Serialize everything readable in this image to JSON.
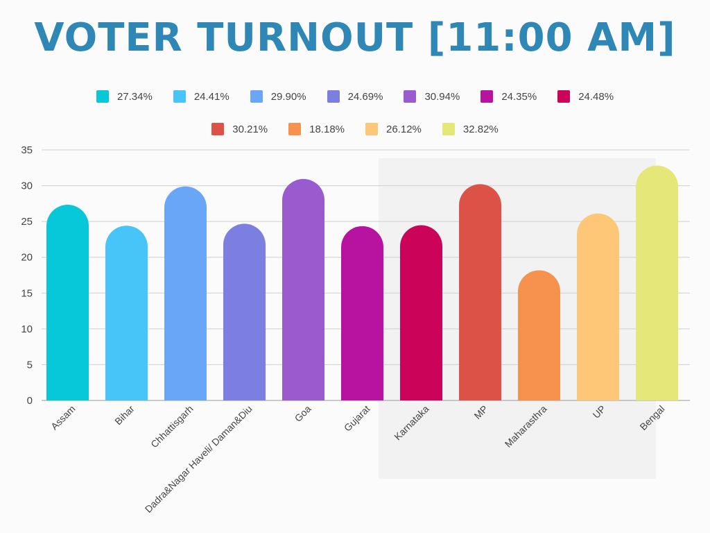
{
  "title": "VOTER TURNOUT [11:00 AM]",
  "chart_data": {
    "type": "bar",
    "title": "VOTER TURNOUT [11:00 AM]",
    "categories": [
      "Assam",
      "Bihar",
      "Chhattisgarh",
      "Dadra&Nagar Haveli/ Daman&Diu",
      "Goa",
      "Gujarat",
      "Karnataka",
      "MP",
      "Maharasthra",
      "UP",
      "Bengal"
    ],
    "values": [
      27.34,
      24.41,
      29.9,
      24.69,
      30.94,
      24.35,
      24.48,
      30.21,
      18.18,
      26.12,
      32.82
    ],
    "legend_labels": [
      "27.34%",
      "24.41%",
      "29.90%",
      "24.69%",
      "30.94%",
      "24.35%",
      "24.48%",
      "30.21%",
      "18.18%",
      "26.12%",
      "32.82%"
    ],
    "colors": [
      "#06c8d8",
      "#47c5f8",
      "#6aa6f8",
      "#7d7fe0",
      "#9a5bce",
      "#b713a0",
      "#cb0459",
      "#dd5246",
      "#f6914e",
      "#fdc777",
      "#e5e879"
    ],
    "ylim": [
      0,
      35
    ],
    "yticks": [
      "0",
      "5",
      "10",
      "15",
      "20",
      "25",
      "30",
      "35"
    ],
    "grid": true,
    "legend_position": "top"
  }
}
